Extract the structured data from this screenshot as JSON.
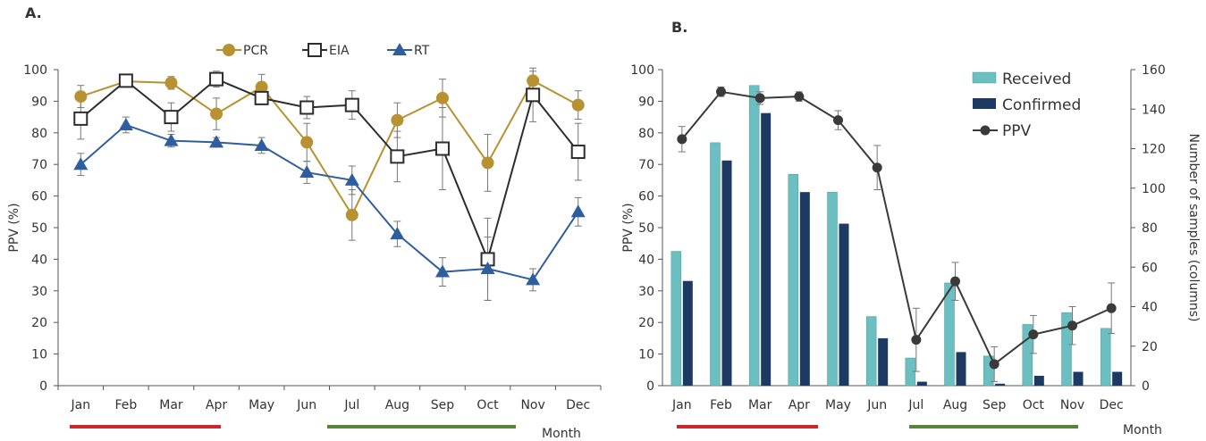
{
  "colors": {
    "pcr": "#B89230",
    "eia": "#2D2D2D",
    "rt": "#2F5E9E",
    "received": "#6BBFC1",
    "confirmed": "#1D3A63",
    "ppv": "#3A3A3A",
    "red_bar": "#C8282E",
    "green_bar": "#56853A",
    "axis": "#555555"
  },
  "chart_data": [
    {
      "panel": "A.",
      "type": "line",
      "xlabel": "Month",
      "ylabel": "PPV (%)",
      "ylim": [
        0,
        100
      ],
      "yticks": [
        0,
        10,
        20,
        30,
        40,
        50,
        60,
        70,
        80,
        90,
        100
      ],
      "categories": [
        "Jan",
        "Feb",
        "Mar",
        "Apr",
        "May",
        "Jun",
        "Jul",
        "Aug",
        "Sep",
        "Oct",
        "Nov",
        "Dec"
      ],
      "legend_position": "top-center",
      "series": [
        {
          "name": "PCR",
          "marker": "circle",
          "values": [
            91.5,
            96.3,
            95.8,
            86.0,
            94.5,
            77.0,
            54.0,
            84.0,
            91.0,
            70.5,
            96.5,
            88.8
          ],
          "err": [
            3.5,
            1.5,
            2,
            5,
            4,
            6,
            8,
            5.5,
            6,
            9,
            3,
            4.5
          ]
        },
        {
          "name": "EIA",
          "marker": "square",
          "values": [
            84.5,
            96.5,
            85.0,
            97.0,
            91.0,
            88.0,
            88.8,
            72.5,
            75.0,
            40.0,
            92.0,
            74.0
          ],
          "err": [
            6.5,
            2,
            4.5,
            2.5,
            2,
            3.5,
            4.5,
            8,
            13,
            13,
            8.5,
            9
          ]
        },
        {
          "name": "RT",
          "marker": "triangle",
          "values": [
            70.0,
            82.5,
            77.5,
            77.0,
            76.0,
            67.5,
            65.0,
            48.0,
            36.0,
            37.0,
            33.5,
            55.0
          ],
          "err": [
            3.5,
            2.5,
            2,
            1.5,
            2.5,
            3.5,
            4.5,
            4,
            4.5,
            10,
            3.5,
            4.5
          ]
        }
      ],
      "period_markers": [
        {
          "from": "Jan",
          "to": "Apr",
          "color": "red"
        },
        {
          "from": "Jul",
          "to": "Nov",
          "color": "green"
        }
      ]
    },
    {
      "panel": "B.",
      "type": "bar",
      "xlabel": "Month",
      "ylabel": "PPV (%)",
      "y2label": "Number of samples (columns)",
      "ylim": [
        0,
        100
      ],
      "yticks": [
        0,
        10,
        20,
        30,
        40,
        50,
        60,
        70,
        80,
        90,
        100
      ],
      "y2lim": [
        0,
        160
      ],
      "y2ticks": [
        0,
        20,
        40,
        60,
        80,
        100,
        120,
        140,
        160
      ],
      "categories": [
        "Jan",
        "Feb",
        "Mar",
        "Apr",
        "May",
        "Jun",
        "Jul",
        "Aug",
        "Sep",
        "Oct",
        "Nov",
        "Dec"
      ],
      "legend_position": "top-right",
      "series": [
        {
          "name": "Received",
          "axis": "y2",
          "values": [
            68,
            123,
            152,
            107,
            98,
            35,
            14,
            52,
            15,
            31,
            37,
            29
          ]
        },
        {
          "name": "Confirmed",
          "axis": "y2",
          "values": [
            53,
            114,
            138,
            98,
            82,
            24,
            2,
            17,
            1,
            5,
            7,
            7
          ]
        },
        {
          "name": "PPV",
          "axis": "y",
          "type": "line",
          "values": [
            78,
            93,
            91,
            91.5,
            84,
            69,
            14.5,
            33,
            6.8,
            16.2,
            19,
            24.5
          ],
          "err": [
            4,
            1.5,
            2,
            1.5,
            3,
            7,
            10,
            6,
            5.5,
            6,
            6,
            8
          ]
        }
      ],
      "period_markers": [
        {
          "from": "Jan",
          "to": "Apr",
          "color": "red"
        },
        {
          "from": "Jul",
          "to": "Nov",
          "color": "green"
        }
      ]
    }
  ]
}
